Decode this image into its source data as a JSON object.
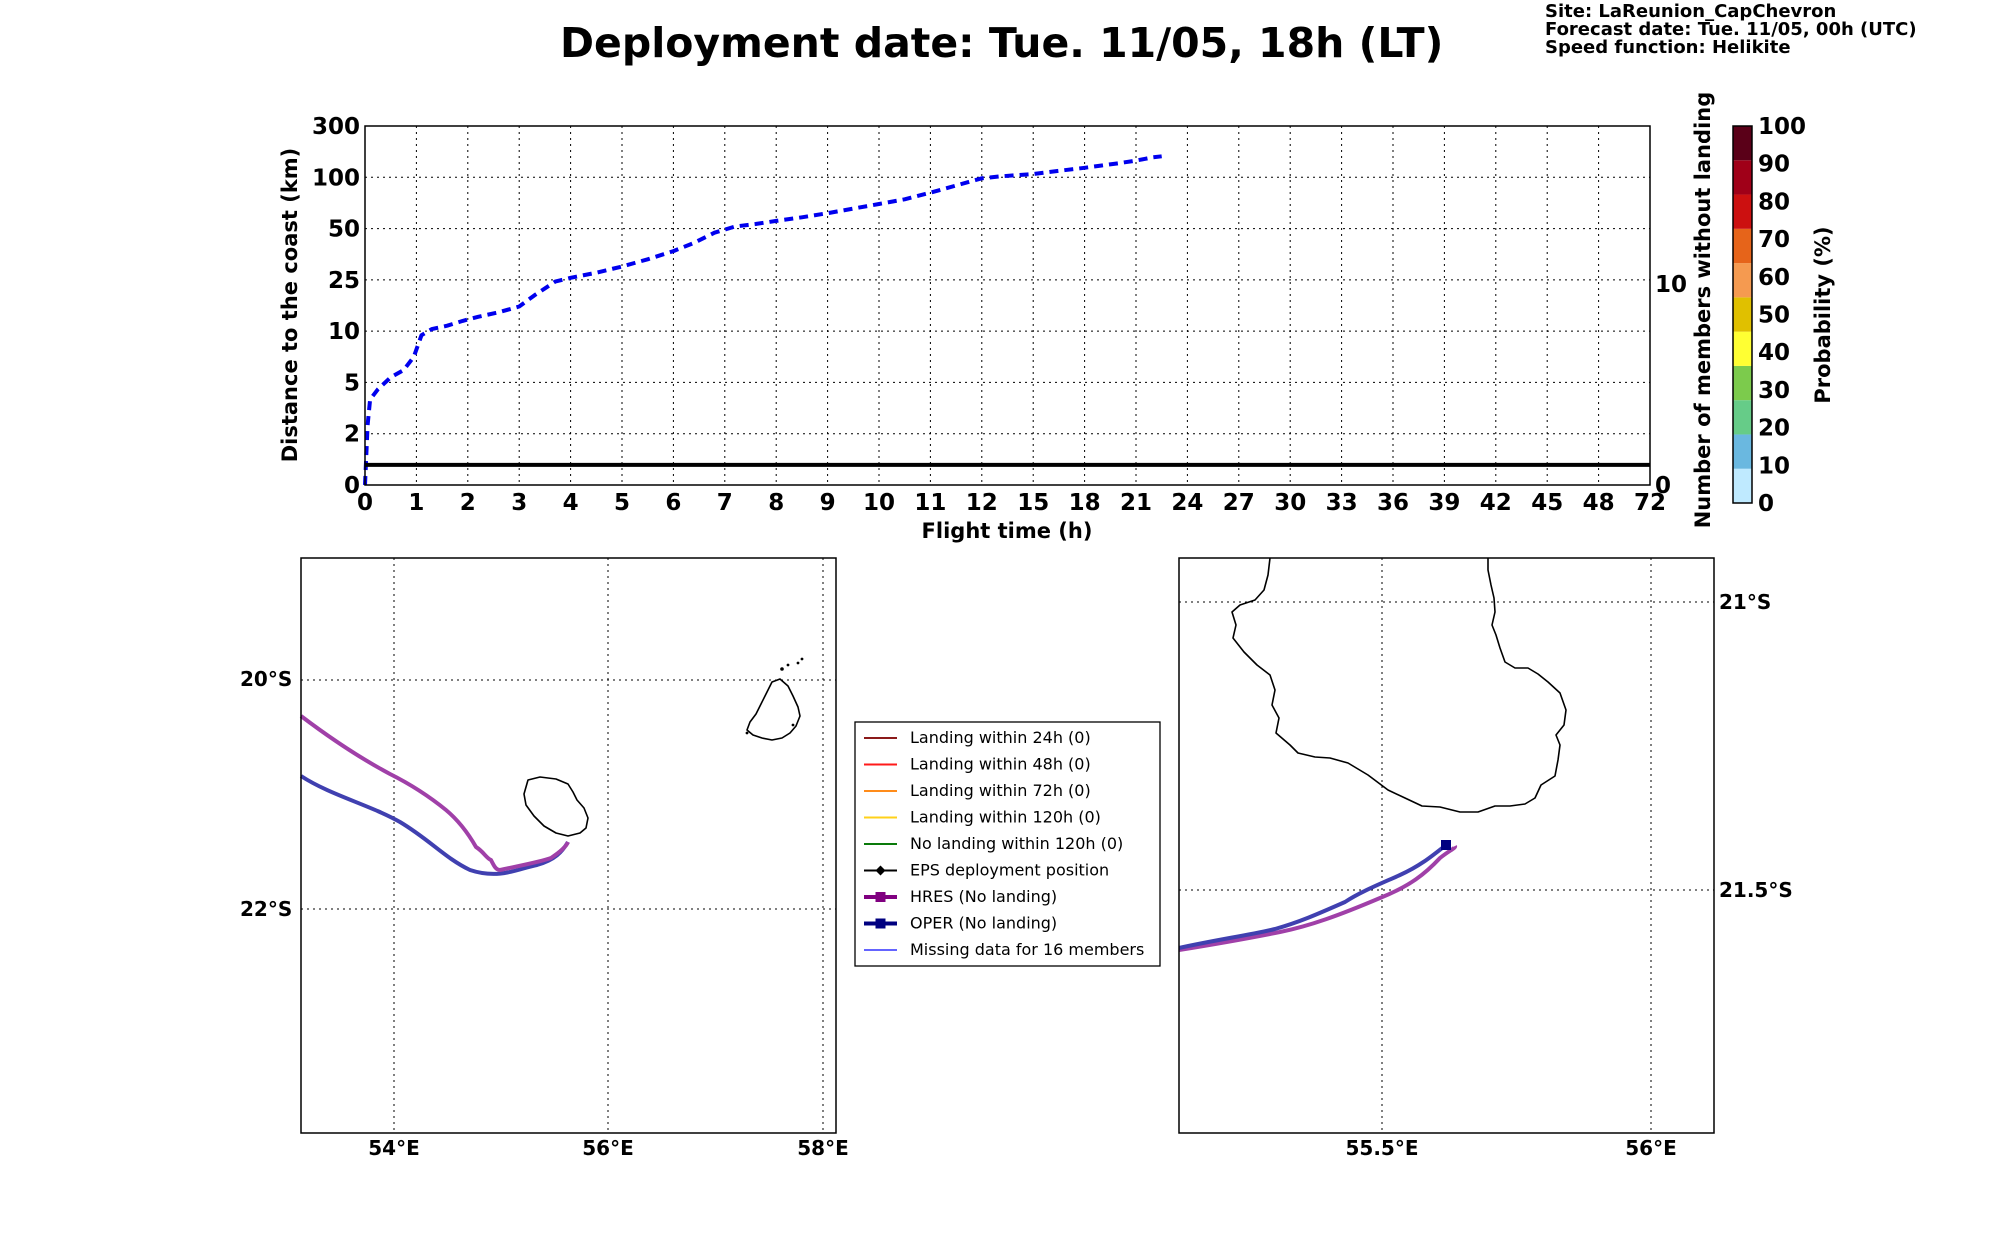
{
  "title": "Deployment date: Tue. 11/05, 18h (LT)",
  "info": {
    "site": "Site: LaReunion_CapChevron",
    "forecast": "Forecast date: Tue. 11/05, 00h (UTC)",
    "speed": "Speed function: Helikite"
  },
  "chart_data": [
    {
      "type": "line",
      "xlabel": "Flight time (h)",
      "ylabel": "Distance to the coast (km)",
      "y2label": "Number of members without landing",
      "x_ticks": [
        "0",
        "1",
        "2",
        "3",
        "4",
        "5",
        "6",
        "7",
        "8",
        "9",
        "10",
        "11",
        "12",
        "15",
        "18",
        "21",
        "24",
        "27",
        "30",
        "33",
        "36",
        "39",
        "42",
        "45",
        "48",
        "72"
      ],
      "y_ticks": [
        "0",
        "2",
        "5",
        "10",
        "25",
        "50",
        "100",
        "300"
      ],
      "y2_ticks": [
        "0",
        "10"
      ],
      "grid": true,
      "series": [
        {
          "style": "dashed",
          "color": "#0000ee",
          "x": [
            0,
            0.05,
            0.1,
            0.25,
            0.5,
            0.75,
            0.95,
            1.1,
            1.3,
            1.6,
            1.9,
            2.2,
            2.6,
            3.0,
            3.3,
            3.5,
            3.7,
            4.0,
            4.5,
            5.0,
            5.5,
            6.0,
            6.4,
            6.8,
            7.2,
            7.6,
            8.0,
            8.5,
            9.0,
            9.5,
            10.0,
            10.5,
            11.0,
            11.5,
            12.0,
            13.0,
            14.0,
            15.0,
            16.0,
            17.0,
            18.0,
            19.0,
            20.0,
            21.0,
            22.0,
            22.5
          ],
          "y": [
            0.0,
            2.5,
            4.0,
            4.6,
            5.5,
            6.2,
            7.5,
            9.6,
            10.6,
            11.6,
            13.0,
            14.2,
            15.5,
            17.2,
            20.5,
            22.5,
            24.5,
            26.0,
            28.5,
            31.5,
            35.0,
            39.0,
            43.0,
            48.0,
            52.0,
            54.5,
            57.5,
            61.0,
            65.0,
            69.5,
            74.0,
            78.5,
            85.0,
            92.0,
            99.0,
            103.0,
            108.0,
            113.0,
            121.0,
            129.0,
            137.0,
            146.0,
            155.0,
            165.0,
            178.0,
            182.0
          ]
        },
        {
          "style": "solid",
          "color": "#000000",
          "axis": "right",
          "x": [
            0,
            72
          ],
          "y": [
            1,
            1
          ]
        }
      ]
    }
  ],
  "colorbar": {
    "label": "Probability (%)",
    "ticks": [
      "0",
      "10",
      "20",
      "30",
      "40",
      "50",
      "60",
      "70",
      "80",
      "90",
      "100"
    ],
    "colors": [
      "#bfeaff",
      "#6ab8e0",
      "#66cc88",
      "#7ccb4c",
      "#ffff33",
      "#e0c000",
      "#f59a50",
      "#e6641a",
      "#cc1010",
      "#a00018",
      "#5a0018"
    ]
  },
  "map_left": {
    "lat_labels": [
      "20°S",
      "22°S"
    ],
    "lon_labels": [
      "54°E",
      "56°E",
      "58°E"
    ]
  },
  "map_right": {
    "lat_labels": [
      "21°S",
      "21.5°S"
    ],
    "lon_labels": [
      "55.5°E",
      "56°E"
    ]
  },
  "legend": {
    "items": [
      {
        "label": "Landing within 24h (0)",
        "color": "#8b1a1a",
        "marker": "none"
      },
      {
        "label": "Landing within 48h (0)",
        "color": "#ff1a1a",
        "marker": "none"
      },
      {
        "label": "Landing within 72h (0)",
        "color": "#ff8c1a",
        "marker": "none"
      },
      {
        "label": "Landing within 120h (0)",
        "color": "#ffd11a",
        "marker": "none"
      },
      {
        "label": "No landing within 120h (0)",
        "color": "#0a7a0a",
        "marker": "none"
      },
      {
        "label": "EPS deployment position",
        "color": "#000000",
        "marker": "diamond"
      },
      {
        "label": "HRES (No landing)",
        "color": "#800080",
        "marker": "square"
      },
      {
        "label": "OPER (No landing)",
        "color": "#000080",
        "marker": "square"
      },
      {
        "label": "Missing data for 16 members",
        "color": "#6464ff",
        "marker": "none"
      }
    ]
  }
}
